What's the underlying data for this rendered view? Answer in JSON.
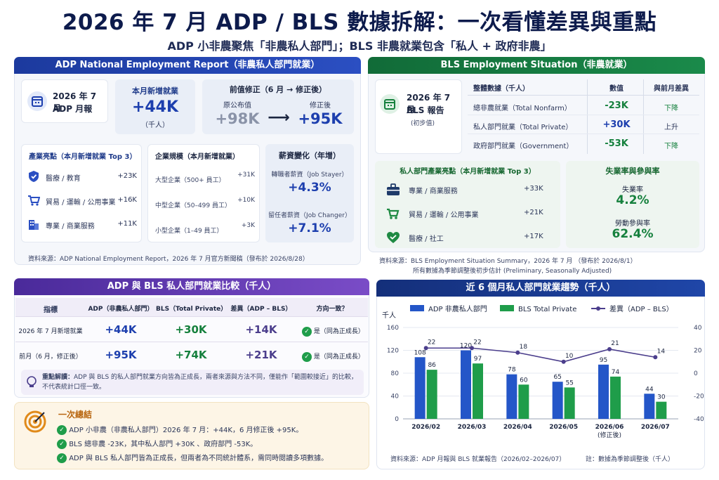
{
  "title": "2026 年 7 月 ADP / BLS 數據拆解：一次看懂差異與重點",
  "subtitle": "ADP 小非農聚焦「非農私人部門」；BLS 非農就業包含「私人 + 政府非農」",
  "adp": {
    "header": "ADP National Employment Report（非農私人部門就業）",
    "badge_line1": "2026 年 7 月",
    "badge_line2": "ADP 月報",
    "new_jobs_label": "本月新增就業",
    "new_jobs_value": "+44K",
    "new_jobs_unit": "（千人）",
    "revision_label": "前值修正（6 月 → 修正後）",
    "orig_label": "原公布值",
    "orig_value": "+98K",
    "arrow": "⟶",
    "revised_label": "修正後",
    "revised_value": "+95K",
    "industry_title": "產業亮點（本月新增就業 Top 3）",
    "industries": [
      {
        "name": "醫療 / 教育",
        "value": "+23K",
        "icon": "shield-icon"
      },
      {
        "name": "貿易 / 運輸 / 公用事業",
        "value": "+16K",
        "icon": "cart-icon"
      },
      {
        "name": "專業 / 商業服務",
        "value": "+11K",
        "icon": "building-icon"
      }
    ],
    "size_title": "企業規模（本月新增就業）",
    "sizes": [
      {
        "name": "大型企業（500+ 員工）",
        "value": "+31K"
      },
      {
        "name": "中型企業（50–499 員工）",
        "value": "+10K"
      },
      {
        "name": "小型企業（1–49 員工）",
        "value": "+3K"
      }
    ],
    "wage_title": "薪資變化（年增）",
    "wage_stayer_label": "轉職者薪資（Job Stayer）",
    "wage_stayer_value": "+4.3%",
    "wage_changer_label": "留任者薪資（Job Changer）",
    "wage_changer_value": "+7.1%",
    "source": "資料來源：ADP National Employment Report，2026 年 7 月官方新聞稿（發布於 2026/8/28）"
  },
  "bls": {
    "header": "BLS Employment Situation（非農就業）",
    "badge_line1": "2026 年 7 月",
    "badge_line2": "BLS 報告",
    "badge_line3": "(初步值)",
    "table_headers": [
      "整體數據（千人）",
      "數值",
      "與前月差異"
    ],
    "rows": [
      {
        "name": "總非農就業（Total Nonfarm）",
        "value": "-23K",
        "diff": "下降"
      },
      {
        "name": "私人部門就業（Total Private）",
        "value": "+30K",
        "diff": "上升"
      },
      {
        "name": "政府部門就業（Government）",
        "value": "-53K",
        "diff": "下降"
      }
    ],
    "sector_title": "私人部門產業亮點（本月新增就業 Top 3）",
    "sectors": [
      {
        "name": "專業 / 商業服務",
        "value": "+33K",
        "icon": "briefcase-icon"
      },
      {
        "name": "貿易 / 運輸 / 公用事業",
        "value": "+21K",
        "icon": "cart-icon"
      },
      {
        "name": "醫療 / 社工",
        "value": "+17K",
        "icon": "heart-icon"
      }
    ],
    "rate_title": "失業率與參與率",
    "unemp_label": "失業率",
    "unemp_value": "4.2%",
    "part_label": "勞動參與率",
    "part_value": "62.4%",
    "source_line1": "資料來源：BLS Employment Situation Summary，2026 年 7 月 （發布於 2026/8/1）",
    "source_line2": "所有數據為季節調整後初步估計 (Preliminary, Seasonally Adjusted)"
  },
  "compare": {
    "header": "ADP 與 BLS 私人部門就業比較（千人）",
    "headers": [
      "指標",
      "ADP（非農私人部門）",
      "BLS（Total Private）",
      "差異（ADP – BLS）",
      "方向一致？"
    ],
    "rows": [
      {
        "label": "2026 年 7 月新增就業",
        "adp": "+44K",
        "bls": "+30K",
        "diff": "+14K",
        "same": "是（同為正成長）"
      },
      {
        "label": "前月（6 月，修正後）",
        "adp": "+95K",
        "bls": "+74K",
        "diff": "+21K",
        "same": "是（同為正成長）"
      }
    ],
    "note_title": "重點解讀：",
    "note_text": "ADP 與 BLS 的私人部門就業方向皆為正成長，兩者來源與方法不同，僅能作「範圍較接近」的比較，不代表統計口徑一致。"
  },
  "summary": {
    "title": "一次總結",
    "items": [
      "ADP 小非農（非農私人部門）2026 年 7 月：+44K，6 月修正後 +95K。",
      "BLS 總非農 -23K，其中私人部門 +30K 、政府部門 -53K。",
      "ADP 與 BLS 私人部門皆為正成長，但兩者為不同統計體系，需同時閱讀多項數據。"
    ]
  },
  "chart_data": {
    "type": "bar",
    "title": "近 6 個月私人部門就業趨勢（千人）",
    "ylabel": "千人",
    "categories": [
      "2026/02",
      "2026/03",
      "2026/04",
      "2026/05",
      "2026/06\n(修正後)",
      "2026/07"
    ],
    "series": [
      {
        "name": "ADP 非農私人部門",
        "values": [
          108,
          120,
          78,
          65,
          95,
          44
        ],
        "color": "#2456c8"
      },
      {
        "name": "BLS Total Private",
        "values": [
          86,
          97,
          60,
          55,
          74,
          30
        ],
        "color": "#1f9d4a"
      },
      {
        "name": "差異（ADP – BLS）",
        "values": [
          22,
          22,
          18,
          10,
          21,
          14
        ],
        "color": "#4b3e8c",
        "type": "line",
        "axis": "right"
      }
    ],
    "ylim": [
      0,
      160
    ],
    "yticks": [
      0,
      40,
      80,
      120,
      160
    ],
    "y2lim": [
      -40,
      40
    ],
    "y2ticks": [
      -40,
      -20,
      0,
      20,
      40
    ],
    "legend": "top",
    "source_left": "資料來源：ADP 月報與 BLS 就業報告（2026/02–2026/07）",
    "source_right": "註：數據為季節調整後（千人）"
  }
}
